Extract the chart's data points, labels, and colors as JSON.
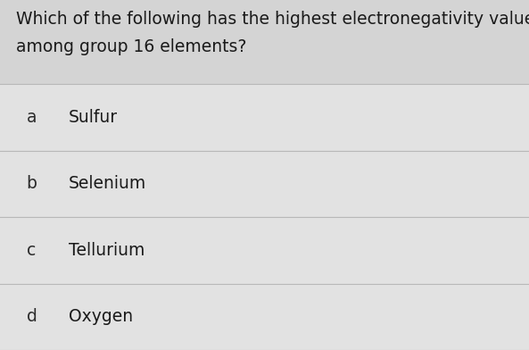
{
  "question_line1": "Which of the following has the highest electronegativity value",
  "question_line2": "among group 16 elements?",
  "options": [
    {
      "label": "a",
      "text": "Sulfur"
    },
    {
      "label": "b",
      "text": "Selenium"
    },
    {
      "label": "c",
      "text": "Tellurium"
    },
    {
      "label": "d",
      "text": "Oxygen"
    }
  ],
  "bg_color": "#d4d4d4",
  "option_bg_color": "#e2e2e2",
  "divider_color": "#b8b8b8",
  "question_color": "#1a1a1a",
  "option_label_color": "#2a2a2a",
  "option_text_color": "#1a1a1a",
  "question_fontsize": 13.5,
  "option_fontsize": 13.5,
  "label_fontsize": 13.5
}
